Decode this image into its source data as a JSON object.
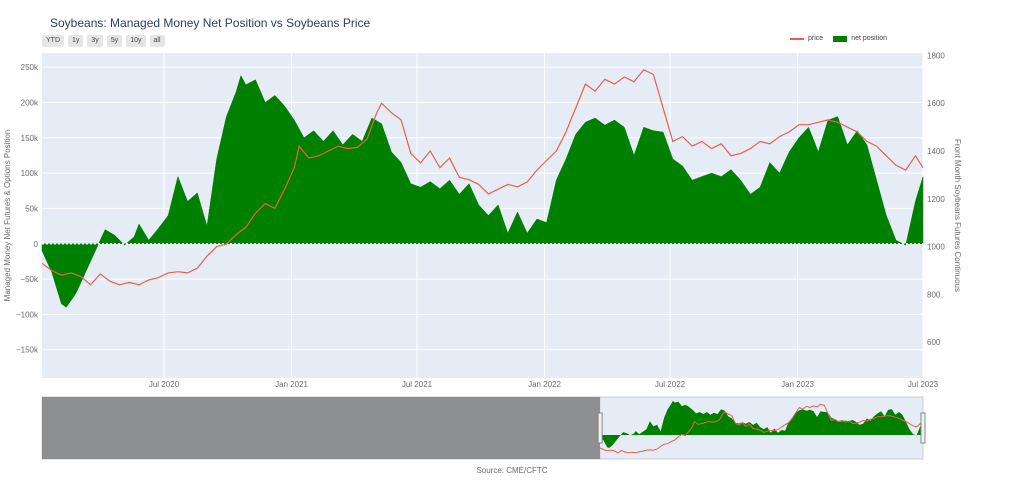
{
  "title": "Soybeans: Managed Money Net Position vs Soybeans Price",
  "range_buttons": [
    "YTD",
    "1y",
    "3y",
    "5y",
    "10y",
    "all"
  ],
  "legend": {
    "price": "price",
    "net": "net position"
  },
  "source": "Source: CME/CFTC",
  "colors": {
    "net": "#008000",
    "price": "#e8604c",
    "plot_bg": "#e5ecf6",
    "grid": "#ffffff",
    "mask": "#7f7f7f"
  },
  "chart_data": {
    "type": "area",
    "title": "Soybeans: Managed Money Net Position vs Soybeans Price",
    "ylabel": "Managed Money Net Futures & Options Position",
    "y2label": "Front Month Soybeans Futures Continuous",
    "xlim": [
      "2020-01-07",
      "2023-07-01"
    ],
    "ylim": [
      -190000,
      270000
    ],
    "y2lim": [
      450,
      1810
    ],
    "x_ticks": [
      {
        "date": "2020-07-01",
        "label": "Jul 2020"
      },
      {
        "date": "2021-01-01",
        "label": "Jan 2021"
      },
      {
        "date": "2021-07-01",
        "label": "Jul 2021"
      },
      {
        "date": "2022-01-01",
        "label": "Jan 2022"
      },
      {
        "date": "2022-07-01",
        "label": "Jul 2022"
      },
      {
        "date": "2023-01-01",
        "label": "Jan 2023"
      },
      {
        "date": "2023-07-01",
        "label": "Jul 2023"
      }
    ],
    "y_ticks": [
      {
        "value": 250000,
        "label": "250k"
      },
      {
        "value": 200000,
        "label": "200k"
      },
      {
        "value": 150000,
        "label": "150k"
      },
      {
        "value": 100000,
        "label": "100k"
      },
      {
        "value": 50000,
        "label": "50k"
      },
      {
        "value": 0,
        "label": "0"
      },
      {
        "value": -50000,
        "label": "−50k"
      },
      {
        "value": -100000,
        "label": "−100k"
      },
      {
        "value": -150000,
        "label": "−150k"
      }
    ],
    "y2_ticks": [
      {
        "value": 1800,
        "label": "1800"
      },
      {
        "value": 1600,
        "label": "1600"
      },
      {
        "value": 1400,
        "label": "1400"
      },
      {
        "value": 1200,
        "label": "1200"
      },
      {
        "value": 1000,
        "label": "1000"
      },
      {
        "value": 800,
        "label": "800"
      },
      {
        "value": 600,
        "label": "600"
      }
    ],
    "grid": true,
    "legend_position": "top-right",
    "series": [
      {
        "name": "net position",
        "axis": "left",
        "points": [
          [
            "2020-01-07",
            -10000
          ],
          [
            "2020-01-21",
            -40000
          ],
          [
            "2020-02-04",
            -85000
          ],
          [
            "2020-02-11",
            -90000
          ],
          [
            "2020-02-25",
            -70000
          ],
          [
            "2020-03-10",
            -40000
          ],
          [
            "2020-03-24",
            -10000
          ],
          [
            "2020-04-07",
            20000
          ],
          [
            "2020-04-21",
            12000
          ],
          [
            "2020-05-05",
            -2000
          ],
          [
            "2020-05-19",
            10000
          ],
          [
            "2020-05-26",
            28000
          ],
          [
            "2020-06-09",
            5000
          ],
          [
            "2020-06-23",
            22000
          ],
          [
            "2020-07-07",
            40000
          ],
          [
            "2020-07-21",
            95000
          ],
          [
            "2020-08-04",
            60000
          ],
          [
            "2020-08-18",
            72000
          ],
          [
            "2020-09-01",
            25000
          ],
          [
            "2020-09-15",
            120000
          ],
          [
            "2020-09-29",
            180000
          ],
          [
            "2020-10-13",
            215000
          ],
          [
            "2020-10-20",
            238000
          ],
          [
            "2020-10-27",
            225000
          ],
          [
            "2020-11-10",
            232000
          ],
          [
            "2020-11-24",
            200000
          ],
          [
            "2020-12-08",
            210000
          ],
          [
            "2020-12-22",
            195000
          ],
          [
            "2021-01-05",
            175000
          ],
          [
            "2021-01-19",
            150000
          ],
          [
            "2021-02-02",
            160000
          ],
          [
            "2021-02-16",
            145000
          ],
          [
            "2021-03-02",
            160000
          ],
          [
            "2021-03-16",
            140000
          ],
          [
            "2021-03-30",
            155000
          ],
          [
            "2021-04-13",
            145000
          ],
          [
            "2021-04-27",
            178000
          ],
          [
            "2021-05-11",
            170000
          ],
          [
            "2021-05-25",
            130000
          ],
          [
            "2021-06-08",
            115000
          ],
          [
            "2021-06-22",
            85000
          ],
          [
            "2021-07-06",
            80000
          ],
          [
            "2021-07-20",
            88000
          ],
          [
            "2021-08-03",
            78000
          ],
          [
            "2021-08-17",
            90000
          ],
          [
            "2021-08-31",
            70000
          ],
          [
            "2021-09-14",
            85000
          ],
          [
            "2021-09-28",
            55000
          ],
          [
            "2021-10-12",
            40000
          ],
          [
            "2021-10-26",
            55000
          ],
          [
            "2021-11-09",
            15000
          ],
          [
            "2021-11-23",
            45000
          ],
          [
            "2021-12-07",
            15000
          ],
          [
            "2021-12-21",
            35000
          ],
          [
            "2022-01-04",
            30000
          ],
          [
            "2022-01-18",
            90000
          ],
          [
            "2022-02-01",
            120000
          ],
          [
            "2022-02-15",
            155000
          ],
          [
            "2022-03-01",
            172000
          ],
          [
            "2022-03-15",
            178000
          ],
          [
            "2022-03-29",
            168000
          ],
          [
            "2022-04-12",
            175000
          ],
          [
            "2022-04-26",
            165000
          ],
          [
            "2022-05-10",
            125000
          ],
          [
            "2022-05-24",
            165000
          ],
          [
            "2022-06-07",
            160000
          ],
          [
            "2022-06-21",
            158000
          ],
          [
            "2022-07-05",
            120000
          ],
          [
            "2022-07-19",
            110000
          ],
          [
            "2022-08-02",
            90000
          ],
          [
            "2022-08-16",
            95000
          ],
          [
            "2022-08-30",
            100000
          ],
          [
            "2022-09-13",
            95000
          ],
          [
            "2022-09-27",
            105000
          ],
          [
            "2022-10-11",
            90000
          ],
          [
            "2022-10-25",
            70000
          ],
          [
            "2022-11-08",
            80000
          ],
          [
            "2022-11-22",
            115000
          ],
          [
            "2022-12-06",
            100000
          ],
          [
            "2022-12-20",
            130000
          ],
          [
            "2023-01-03",
            150000
          ],
          [
            "2023-01-17",
            165000
          ],
          [
            "2023-01-31",
            130000
          ],
          [
            "2023-02-14",
            175000
          ],
          [
            "2023-02-28",
            180000
          ],
          [
            "2023-03-14",
            140000
          ],
          [
            "2023-03-28",
            160000
          ],
          [
            "2023-04-11",
            140000
          ],
          [
            "2023-04-25",
            90000
          ],
          [
            "2023-05-09",
            40000
          ],
          [
            "2023-05-23",
            5000
          ],
          [
            "2023-06-06",
            -2000
          ],
          [
            "2023-06-20",
            60000
          ],
          [
            "2023-07-01",
            95000
          ]
        ]
      },
      {
        "name": "price",
        "axis": "right",
        "points": [
          [
            "2020-01-07",
            930
          ],
          [
            "2020-01-21",
            900
          ],
          [
            "2020-02-04",
            880
          ],
          [
            "2020-02-18",
            890
          ],
          [
            "2020-03-03",
            875
          ],
          [
            "2020-03-17",
            840
          ],
          [
            "2020-03-31",
            885
          ],
          [
            "2020-04-14",
            855
          ],
          [
            "2020-04-28",
            840
          ],
          [
            "2020-05-12",
            850
          ],
          [
            "2020-05-26",
            840
          ],
          [
            "2020-06-09",
            860
          ],
          [
            "2020-06-23",
            870
          ],
          [
            "2020-07-07",
            890
          ],
          [
            "2020-07-21",
            895
          ],
          [
            "2020-08-04",
            890
          ],
          [
            "2020-08-18",
            910
          ],
          [
            "2020-09-01",
            960
          ],
          [
            "2020-09-15",
            1000
          ],
          [
            "2020-09-29",
            1010
          ],
          [
            "2020-10-13",
            1050
          ],
          [
            "2020-10-27",
            1080
          ],
          [
            "2020-11-10",
            1140
          ],
          [
            "2020-11-24",
            1180
          ],
          [
            "2020-12-08",
            1160
          ],
          [
            "2020-12-22",
            1240
          ],
          [
            "2021-01-05",
            1330
          ],
          [
            "2021-01-12",
            1420
          ],
          [
            "2021-01-26",
            1370
          ],
          [
            "2021-02-09",
            1380
          ],
          [
            "2021-02-23",
            1400
          ],
          [
            "2021-03-09",
            1420
          ],
          [
            "2021-03-23",
            1410
          ],
          [
            "2021-04-06",
            1415
          ],
          [
            "2021-04-20",
            1450
          ],
          [
            "2021-05-04",
            1560
          ],
          [
            "2021-05-11",
            1600
          ],
          [
            "2021-05-25",
            1560
          ],
          [
            "2021-06-08",
            1530
          ],
          [
            "2021-06-22",
            1390
          ],
          [
            "2021-07-06",
            1350
          ],
          [
            "2021-07-20",
            1400
          ],
          [
            "2021-08-03",
            1330
          ],
          [
            "2021-08-17",
            1370
          ],
          [
            "2021-08-31",
            1290
          ],
          [
            "2021-09-14",
            1280
          ],
          [
            "2021-09-28",
            1260
          ],
          [
            "2021-10-12",
            1220
          ],
          [
            "2021-10-26",
            1240
          ],
          [
            "2021-11-09",
            1260
          ],
          [
            "2021-11-23",
            1250
          ],
          [
            "2021-12-07",
            1270
          ],
          [
            "2021-12-21",
            1320
          ],
          [
            "2022-01-04",
            1360
          ],
          [
            "2022-01-18",
            1400
          ],
          [
            "2022-02-01",
            1480
          ],
          [
            "2022-02-15",
            1580
          ],
          [
            "2022-03-01",
            1680
          ],
          [
            "2022-03-15",
            1650
          ],
          [
            "2022-03-29",
            1700
          ],
          [
            "2022-04-12",
            1680
          ],
          [
            "2022-04-26",
            1710
          ],
          [
            "2022-05-10",
            1690
          ],
          [
            "2022-05-24",
            1740
          ],
          [
            "2022-06-07",
            1720
          ],
          [
            "2022-06-21",
            1580
          ],
          [
            "2022-07-05",
            1440
          ],
          [
            "2022-07-19",
            1460
          ],
          [
            "2022-08-02",
            1420
          ],
          [
            "2022-08-16",
            1440
          ],
          [
            "2022-08-30",
            1410
          ],
          [
            "2022-09-13",
            1430
          ],
          [
            "2022-09-27",
            1380
          ],
          [
            "2022-10-11",
            1390
          ],
          [
            "2022-10-25",
            1410
          ],
          [
            "2022-11-08",
            1440
          ],
          [
            "2022-11-22",
            1430
          ],
          [
            "2022-12-06",
            1460
          ],
          [
            "2022-12-20",
            1480
          ],
          [
            "2023-01-03",
            1510
          ],
          [
            "2023-01-17",
            1510
          ],
          [
            "2023-01-31",
            1520
          ],
          [
            "2023-02-14",
            1530
          ],
          [
            "2023-02-28",
            1520
          ],
          [
            "2023-03-14",
            1500
          ],
          [
            "2023-03-28",
            1480
          ],
          [
            "2023-04-11",
            1440
          ],
          [
            "2023-04-25",
            1420
          ],
          [
            "2023-05-09",
            1380
          ],
          [
            "2023-05-23",
            1340
          ],
          [
            "2023-06-06",
            1320
          ],
          [
            "2023-06-20",
            1380
          ],
          [
            "2023-07-01",
            1330
          ]
        ]
      }
    ]
  }
}
